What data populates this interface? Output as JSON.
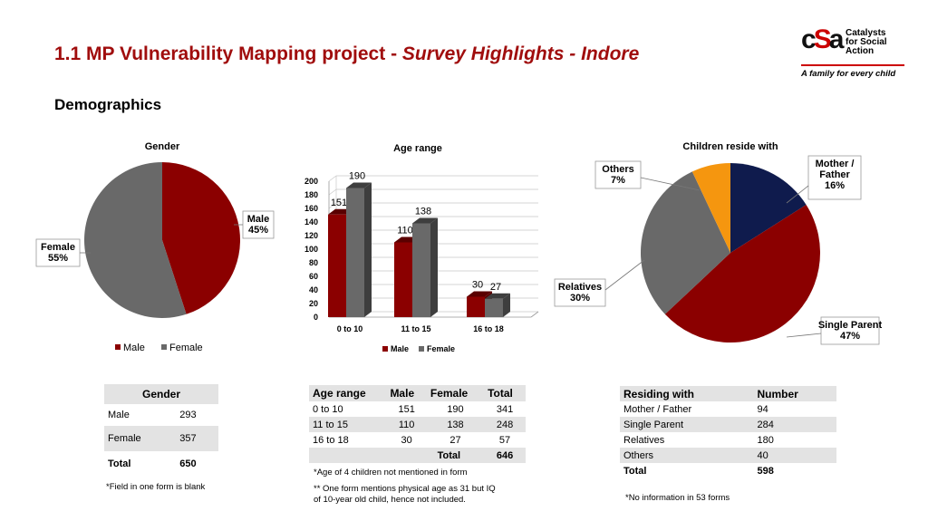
{
  "header": {
    "title_main": "1.1 MP Vulnerability Mapping project - ",
    "title_italic": "Survey Highlights - Indore",
    "section": "Demographics",
    "logo_letters": [
      "c",
      "S",
      "a"
    ],
    "logo_lines": [
      "Catalysts",
      "for Social",
      "Action"
    ],
    "logo_tagline": "A family for every child"
  },
  "colors": {
    "male": "#8b0000",
    "female": "#696969",
    "navy": "#0f1b4d",
    "orange": "#f5960f"
  },
  "chart_data": [
    {
      "type": "pie",
      "title": "Gender",
      "labels": [
        "Male",
        "Female"
      ],
      "callouts": [
        "Male\n45%",
        "Female\n55%"
      ],
      "values": [
        45,
        55
      ],
      "colors": [
        "#8b0000",
        "#696969"
      ],
      "legend": [
        "Male",
        "Female"
      ],
      "legend_position": "bottom"
    },
    {
      "type": "bar",
      "title": "Age range",
      "categories": [
        "0 to 10",
        "11 to 15",
        "16 to 18"
      ],
      "series": [
        {
          "name": "Male",
          "values": [
            151,
            110,
            30
          ],
          "color": "#8b0000"
        },
        {
          "name": "Female",
          "values": [
            190,
            138,
            27
          ],
          "color": "#696969"
        }
      ],
      "ylim": [
        0,
        200
      ],
      "yticks": [
        0,
        20,
        40,
        60,
        80,
        100,
        120,
        140,
        160,
        180,
        200
      ],
      "grid": true,
      "legend_position": "bottom"
    },
    {
      "type": "pie",
      "title": "Children reside with",
      "labels": [
        "Mother / Father",
        "Single Parent",
        "Relatives",
        "Others"
      ],
      "callouts": [
        "Mother /\nFather\n16%",
        "Single Parent\n47%",
        "Relatives\n30%",
        "Others\n7%"
      ],
      "values": [
        16,
        47,
        30,
        7
      ],
      "colors": [
        "#0f1b4d",
        "#8b0000",
        "#696969",
        "#f5960f"
      ]
    }
  ],
  "tables": {
    "gender": {
      "header": "Gender",
      "rows": [
        [
          "Male",
          "293"
        ],
        [
          "Female",
          "357"
        ]
      ],
      "total": [
        "Total",
        "650"
      ],
      "note": "*Field in one form is blank"
    },
    "age": {
      "headers": [
        "Age range",
        "Male",
        "Female",
        "Total"
      ],
      "rows": [
        [
          "0 to 10",
          "151",
          "190",
          "341"
        ],
        [
          "11 to 15",
          "110",
          "138",
          "248"
        ],
        [
          "16 to 18",
          "30",
          "27",
          "57"
        ]
      ],
      "total": [
        "Total",
        "646"
      ],
      "notes": [
        "*Age of 4 children not mentioned in form",
        "** One form mentions physical age as 31 but IQ",
        "of 10-year old child, hence not included."
      ]
    },
    "residing": {
      "headers": [
        "Residing with",
        "Number"
      ],
      "rows": [
        [
          "Mother / Father",
          "94"
        ],
        [
          "Single Parent",
          "284"
        ],
        [
          "Relatives",
          "180"
        ],
        [
          "Others",
          "40"
        ]
      ],
      "total": [
        "Total",
        "598"
      ],
      "note": "*No information in 53 forms"
    }
  }
}
